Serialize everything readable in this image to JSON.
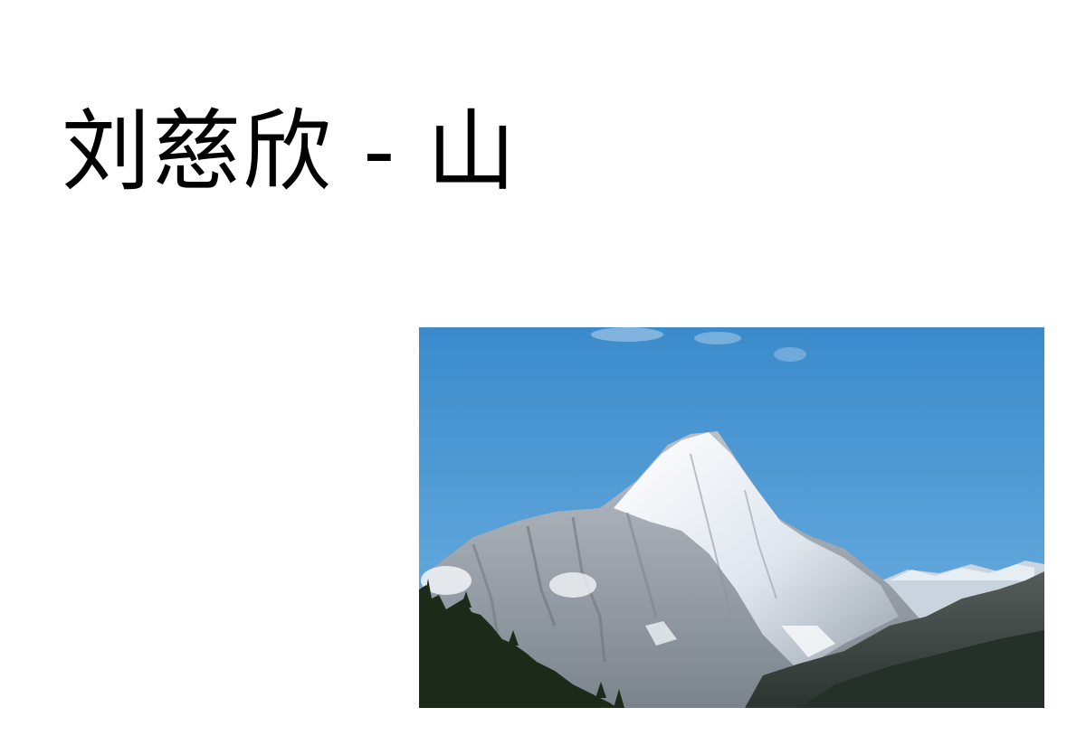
{
  "slide": {
    "title": "刘慈欣 - 山"
  },
  "photo": {
    "subject": "mountain-photo",
    "colors": {
      "sky_top": "#3f8fcf",
      "sky_bottom": "#6aaedf",
      "snow": "#f4f7fa",
      "rock": "#9aa2ab",
      "rock_dark": "#6b737c",
      "ridge_dark": "#3d4640",
      "forest": "#1f2e1c"
    }
  }
}
